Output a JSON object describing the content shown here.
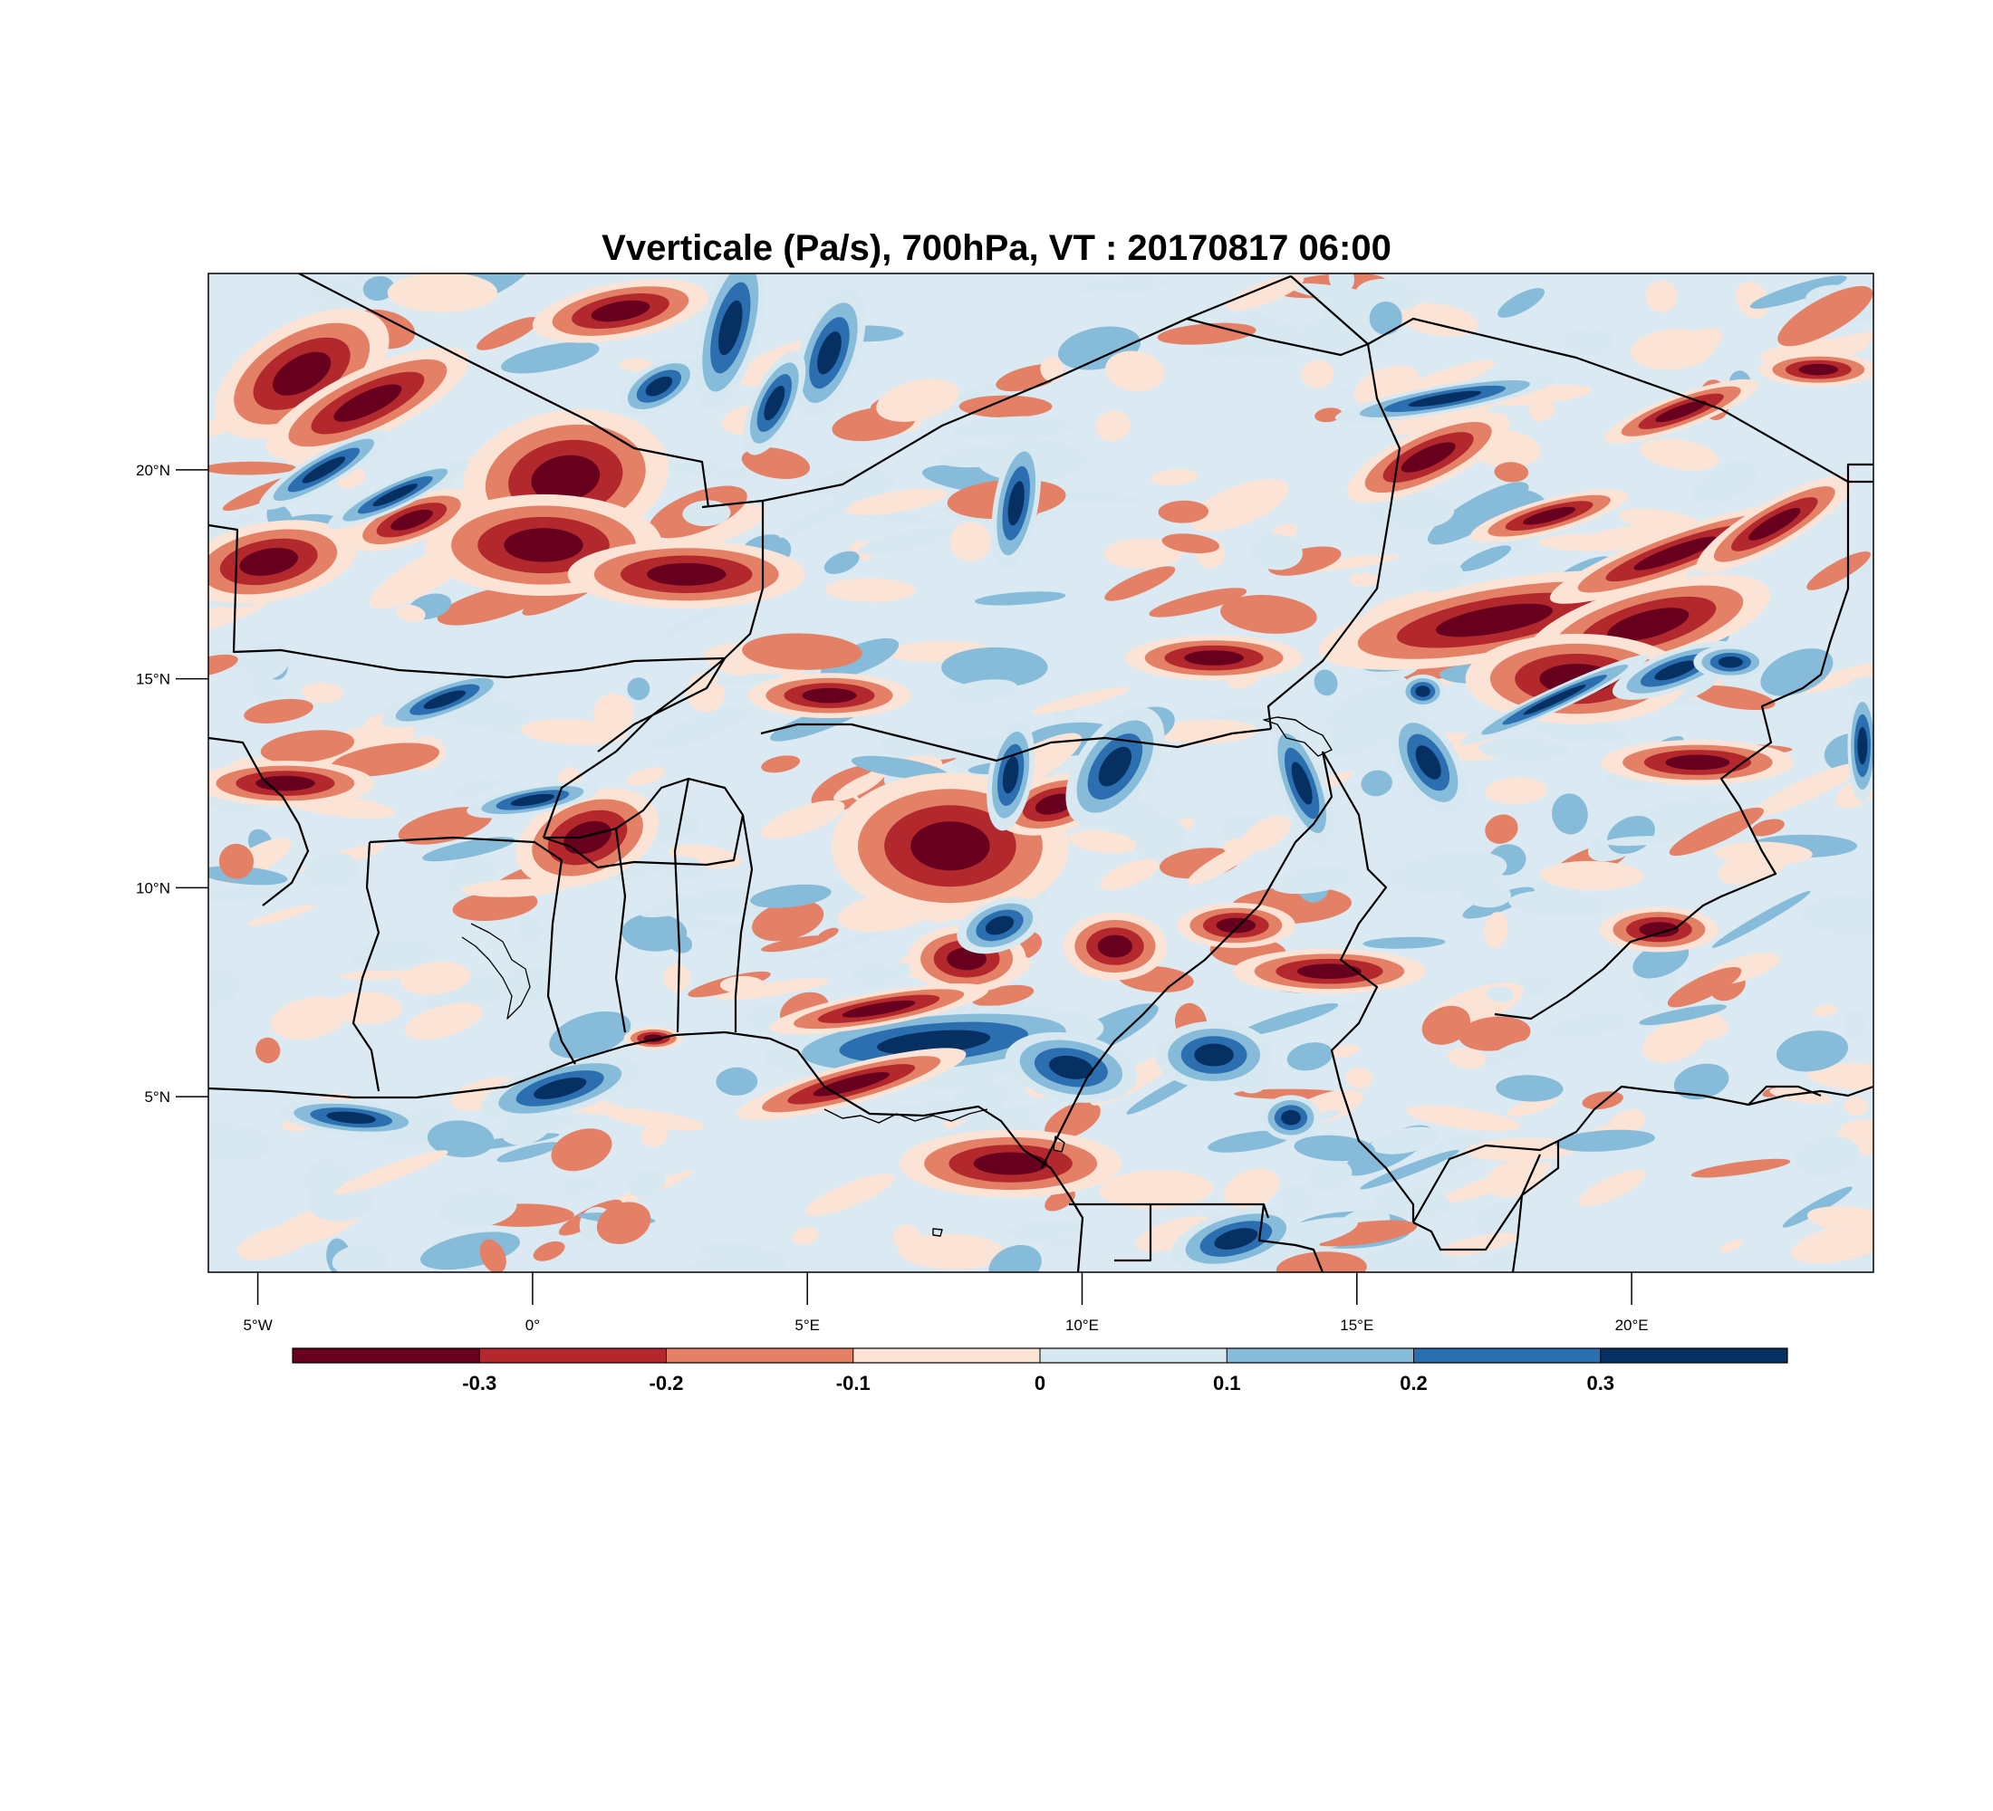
{
  "title": "Vverticale (Pa/s), 700hPa, VT : 20170817  06:00",
  "map": {
    "lon_range": [
      -5.9,
      24.4
    ],
    "lat_range": [
      0.8,
      24.7
    ],
    "lon_ticks": [
      {
        "value": -5,
        "label": "5°W"
      },
      {
        "value": 0,
        "label": "0°"
      },
      {
        "value": 5,
        "label": "5°E"
      },
      {
        "value": 10,
        "label": "10°E"
      },
      {
        "value": 15,
        "label": "15°E"
      },
      {
        "value": 20,
        "label": "20°E"
      }
    ],
    "lat_ticks": [
      {
        "value": 5,
        "label": "5°N"
      },
      {
        "value": 10,
        "label": "10°N"
      },
      {
        "value": 15,
        "label": "15°N"
      },
      {
        "value": 20,
        "label": "20°N"
      }
    ],
    "background_color": "#dbe9f2"
  },
  "colorbar": {
    "levels": [
      "-0.3",
      "-0.2",
      "-0.1",
      "0",
      "0.1",
      "0.2",
      "0.3"
    ],
    "colors": [
      "#67001f",
      "#b2282d",
      "#e48066",
      "#fbe3d6",
      "#d7e8f1",
      "#86bbd9",
      "#2c6fb0",
      "#053061"
    ]
  },
  "chart_data": {
    "type": "filled-contour-map",
    "variable": "Vverticale",
    "units": "Pa/s",
    "level": "700hPa",
    "valid_time": "20170817  06:00",
    "contour_levels": [
      -0.3,
      -0.2,
      -0.1,
      0,
      0.1,
      0.2,
      0.3
    ]
  }
}
